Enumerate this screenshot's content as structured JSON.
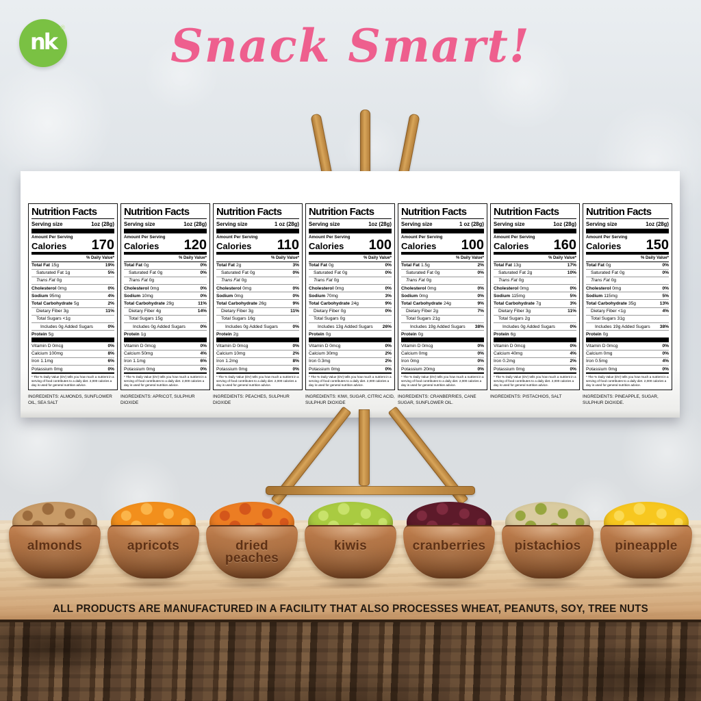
{
  "brand": {
    "logo_text": "nk",
    "registered_mark": "®",
    "logo_color": "#7ac143"
  },
  "header": {
    "title": "Snack Smart!",
    "title_color": "#ee5f8e"
  },
  "footer": {
    "allergen_notice": "ALL PRODUCTS ARE MANUFACTURED IN A FACILITY THAT ALSO PROCESSES WHEAT, PEANUTS, SOY, TREE NUTS"
  },
  "nutrition_shared": {
    "heading": "Nutrition Facts",
    "serving_size_label": "Serving size",
    "amount_per_serving_label": "Amount Per Serving",
    "calories_label": "Calories",
    "daily_value_header": "% Daily Value*",
    "footnote": "* The % Daily Value (DV) tells you how much a nutrient in a serving of food contributes to a daily diet. 2,000 calories a day is used for general nutrition advice."
  },
  "products": [
    {
      "bowl_label": "almonds",
      "serving_size": "1oz (28g)",
      "calories": "170",
      "nutrient_rows": [
        {
          "name": "Total Fat",
          "amount": "15g",
          "dv": "19%",
          "style": "bold"
        },
        {
          "name": "Saturated Fat",
          "amount": "1g",
          "dv": "5%",
          "style": "indent"
        },
        {
          "name": "Trans Fat",
          "amount": "0g",
          "dv": "",
          "style": "indent-italic"
        },
        {
          "name": "Cholesterol",
          "amount": "0mg",
          "dv": "0%",
          "style": "bold"
        },
        {
          "name": "Sodium",
          "amount": "95mg",
          "dv": "4%",
          "style": "bold"
        },
        {
          "name": "Total Carbohydrate",
          "amount": "5g",
          "dv": "2%",
          "style": "bold"
        },
        {
          "name": "Dietary Fiber",
          "amount": "3g",
          "dv": "11%",
          "style": "indent"
        },
        {
          "name": "Total Sugars",
          "amount": "<1g",
          "dv": "",
          "style": "indent"
        },
        {
          "name": "Includes 0g Added Sugars",
          "amount": "",
          "dv": "0%",
          "style": "indent2"
        },
        {
          "name": "Protein",
          "amount": "5g",
          "dv": "",
          "style": "bold"
        }
      ],
      "vitamin_rows": [
        {
          "name": "Vitamin D 0mcg",
          "dv": "0%"
        },
        {
          "name": "Calcium 100mg",
          "dv": "8%"
        },
        {
          "name": "Iron 1.1mg",
          "dv": "6%"
        },
        {
          "name": "Potassium 0mg",
          "dv": "0%"
        }
      ],
      "ingredients": "INGREDIENTS: ALMONDS, SUNFLOWER OIL, SEA SALT",
      "fruit_colors": [
        "#c89b67",
        "#9b6b3d"
      ]
    },
    {
      "bowl_label": "apricots",
      "serving_size": "1oz (28g)",
      "calories": "120",
      "nutrient_rows": [
        {
          "name": "Total Fat",
          "amount": "0g",
          "dv": "0%",
          "style": "bold"
        },
        {
          "name": "Saturated Fat",
          "amount": "0g",
          "dv": "0%",
          "style": "indent"
        },
        {
          "name": "Trans Fat",
          "amount": "0g",
          "dv": "",
          "style": "indent-italic"
        },
        {
          "name": "Cholesterol",
          "amount": "0mg",
          "dv": "0%",
          "style": "bold"
        },
        {
          "name": "Sodium",
          "amount": "10mg",
          "dv": "0%",
          "style": "bold"
        },
        {
          "name": "Total Carbohydrate",
          "amount": "29g",
          "dv": "11%",
          "style": "bold"
        },
        {
          "name": "Dietary Fiber",
          "amount": "4g",
          "dv": "14%",
          "style": "indent"
        },
        {
          "name": "Total Sugars",
          "amount": "15g",
          "dv": "",
          "style": "indent"
        },
        {
          "name": "Includes 0g Added Sugars",
          "amount": "",
          "dv": "0%",
          "style": "indent2"
        },
        {
          "name": "Protein",
          "amount": "1g",
          "dv": "",
          "style": "bold"
        }
      ],
      "vitamin_rows": [
        {
          "name": "Vitamin D 0mcg",
          "dv": "0%"
        },
        {
          "name": "Calcium 50mg",
          "dv": "4%"
        },
        {
          "name": "Iron 1.1mg",
          "dv": "6%"
        },
        {
          "name": "Potassium 0mg",
          "dv": "0%"
        }
      ],
      "ingredients": "INGREDIENTS: APRICOT, SULPHUR DIOXIDE",
      "fruit_colors": [
        "#f28f1c",
        "#fbb54a"
      ]
    },
    {
      "bowl_label": "dried\npeaches",
      "serving_size": "1 oz (28g)",
      "calories": "110",
      "nutrient_rows": [
        {
          "name": "Total Fat",
          "amount": "2g",
          "dv": "3%",
          "style": "bold"
        },
        {
          "name": "Saturated Fat",
          "amount": "0g",
          "dv": "0%",
          "style": "indent"
        },
        {
          "name": "Trans Fat",
          "amount": "0g",
          "dv": "",
          "style": "indent-italic"
        },
        {
          "name": "Cholesterol",
          "amount": "0mg",
          "dv": "0%",
          "style": "bold"
        },
        {
          "name": "Sodium",
          "amount": "0mg",
          "dv": "0%",
          "style": "bold"
        },
        {
          "name": "Total Carbohydrate",
          "amount": "26g",
          "dv": "9%",
          "style": "bold"
        },
        {
          "name": "Dietary Fiber",
          "amount": "3g",
          "dv": "11%",
          "style": "indent"
        },
        {
          "name": "Total Sugars",
          "amount": "16g",
          "dv": "",
          "style": "indent"
        },
        {
          "name": "Includes 0g Added Sugars",
          "amount": "",
          "dv": "0%",
          "style": "indent2"
        },
        {
          "name": "Protein",
          "amount": "2g",
          "dv": "",
          "style": "bold"
        }
      ],
      "vitamin_rows": [
        {
          "name": "Vitamin D 0mcg",
          "dv": "0%"
        },
        {
          "name": "Calcium 10mg",
          "dv": "2%"
        },
        {
          "name": "Iron 1.2mg",
          "dv": "8%"
        },
        {
          "name": "Potassium 0mg",
          "dv": "0%"
        }
      ],
      "ingredients": "INGREDIENTS: PEACHES, SULPHUR DIOXIDE",
      "fruit_colors": [
        "#ec7d23",
        "#d4561b"
      ]
    },
    {
      "bowl_label": "kiwis",
      "serving_size": "1oz (28g)",
      "calories": "100",
      "nutrient_rows": [
        {
          "name": "Total Fat",
          "amount": "0g",
          "dv": "0%",
          "style": "bold"
        },
        {
          "name": "Saturated Fat",
          "amount": "0g",
          "dv": "0%",
          "style": "indent"
        },
        {
          "name": "Trans Fat",
          "amount": "0g",
          "dv": "",
          "style": "indent-italic"
        },
        {
          "name": "Cholesterol",
          "amount": "0mg",
          "dv": "0%",
          "style": "bold"
        },
        {
          "name": "Sodium",
          "amount": "70mg",
          "dv": "3%",
          "style": "bold"
        },
        {
          "name": "Total Carbohydrate",
          "amount": "24g",
          "dv": "9%",
          "style": "bold"
        },
        {
          "name": "Dietary Fiber",
          "amount": "0g",
          "dv": "0%",
          "style": "indent"
        },
        {
          "name": "Total Sugars",
          "amount": "0g",
          "dv": "",
          "style": "indent"
        },
        {
          "name": "Includes 13g Added Sugars",
          "amount": "",
          "dv": "26%",
          "style": "indent2"
        },
        {
          "name": "Protein",
          "amount": "0g",
          "dv": "",
          "style": "bold"
        }
      ],
      "vitamin_rows": [
        {
          "name": "Vitamin D 0mcg",
          "dv": "0%"
        },
        {
          "name": "Calcium 30mg",
          "dv": "2%"
        },
        {
          "name": "Iron 0.3mg",
          "dv": "2%"
        },
        {
          "name": "Potassium 0mg",
          "dv": "0%"
        }
      ],
      "ingredients": "INGREDIENTS: KIWI, SUGAR, CITRIC ACID, SULPHUR DIOXIDE",
      "fruit_colors": [
        "#a9cb41",
        "#c8e26b"
      ]
    },
    {
      "bowl_label": "cranberries",
      "serving_size": "1 oz (28g)",
      "calories": "100",
      "nutrient_rows": [
        {
          "name": "Total Fat",
          "amount": "1.5g",
          "dv": "2%",
          "style": "bold"
        },
        {
          "name": "Saturated Fat",
          "amount": "0g",
          "dv": "0%",
          "style": "indent"
        },
        {
          "name": "Trans Fat",
          "amount": "0g",
          "dv": "",
          "style": "indent-italic"
        },
        {
          "name": "Cholesterol",
          "amount": "0mg",
          "dv": "0%",
          "style": "bold"
        },
        {
          "name": "Sodium",
          "amount": "0mg",
          "dv": "0%",
          "style": "bold"
        },
        {
          "name": "Total Carbohydrate",
          "amount": "24g",
          "dv": "9%",
          "style": "bold"
        },
        {
          "name": "Dietary Fiber",
          "amount": "2g",
          "dv": "7%",
          "style": "indent"
        },
        {
          "name": "Total Sugars",
          "amount": "21g",
          "dv": "",
          "style": "indent"
        },
        {
          "name": "Includes 19g Added Sugars",
          "amount": "",
          "dv": "38%",
          "style": "indent2"
        },
        {
          "name": "Protein",
          "amount": "0g",
          "dv": "",
          "style": "bold"
        }
      ],
      "vitamin_rows": [
        {
          "name": "Vitamin D 0mcg",
          "dv": "0%"
        },
        {
          "name": "Calcium 0mg",
          "dv": "0%"
        },
        {
          "name": "Iron 0mg",
          "dv": "0%"
        },
        {
          "name": "Potassium 20mg",
          "dv": "0%"
        }
      ],
      "ingredients": "INGREDIENTS: CRANBERRIES, CANE SUGAR, SUNFLOWER OIL.",
      "fruit_colors": [
        "#5d1a2a",
        "#7e2a3e"
      ]
    },
    {
      "bowl_label": "pistachios",
      "serving_size": "1oz (28g)",
      "calories": "160",
      "nutrient_rows": [
        {
          "name": "Total Fat",
          "amount": "13g",
          "dv": "17%",
          "style": "bold"
        },
        {
          "name": "Saturated Fat",
          "amount": "2g",
          "dv": "10%",
          "style": "indent"
        },
        {
          "name": "Trans Fat",
          "amount": "0g",
          "dv": "",
          "style": "indent-italic"
        },
        {
          "name": "Cholesterol",
          "amount": "0mg",
          "dv": "0%",
          "style": "bold"
        },
        {
          "name": "Sodium",
          "amount": "115mg",
          "dv": "5%",
          "style": "bold"
        },
        {
          "name": "Total Carbohydrate",
          "amount": "7g",
          "dv": "3%",
          "style": "bold"
        },
        {
          "name": "Dietary Fiber",
          "amount": "3g",
          "dv": "11%",
          "style": "indent"
        },
        {
          "name": "Total Sugars",
          "amount": "2g",
          "dv": "",
          "style": "indent"
        },
        {
          "name": "Includes 0g Added Sugars",
          "amount": "",
          "dv": "0%",
          "style": "indent2"
        },
        {
          "name": "Protein",
          "amount": "6g",
          "dv": "",
          "style": "bold"
        }
      ],
      "vitamin_rows": [
        {
          "name": "Vitamin D 0mcg",
          "dv": "0%"
        },
        {
          "name": "Calcium 40mg",
          "dv": "4%"
        },
        {
          "name": "Iron 0.2mg",
          "dv": "2%"
        },
        {
          "name": "Potassium 0mg",
          "dv": "0%"
        }
      ],
      "ingredients": "INGREDIENTS: PISTACHIOS, SALT",
      "fruit_colors": [
        "#d9cba0",
        "#97a63f"
      ]
    },
    {
      "bowl_label": "pineapple",
      "serving_size": "1oz (28g)",
      "calories": "150",
      "nutrient_rows": [
        {
          "name": "Total Fat",
          "amount": "0g",
          "dv": "0%",
          "style": "bold"
        },
        {
          "name": "Saturated Fat",
          "amount": "0g",
          "dv": "0%",
          "style": "indent"
        },
        {
          "name": "Trans Fat",
          "amount": "0g",
          "dv": "",
          "style": "indent-italic"
        },
        {
          "name": "Cholesterol",
          "amount": "0mg",
          "dv": "0%",
          "style": "bold"
        },
        {
          "name": "Sodium",
          "amount": "115mg",
          "dv": "5%",
          "style": "bold"
        },
        {
          "name": "Total Carbohydrate",
          "amount": "35g",
          "dv": "13%",
          "style": "bold"
        },
        {
          "name": "Dietary Fiber",
          "amount": "<1g",
          "dv": "4%",
          "style": "indent"
        },
        {
          "name": "Total Sugars",
          "amount": "31g",
          "dv": "",
          "style": "indent"
        },
        {
          "name": "Includes 19g Added Sugars",
          "amount": "",
          "dv": "38%",
          "style": "indent2"
        },
        {
          "name": "Protein",
          "amount": "0g",
          "dv": "",
          "style": "bold"
        }
      ],
      "vitamin_rows": [
        {
          "name": "Vitamin D 0mcg",
          "dv": "0%"
        },
        {
          "name": "Calcium 0mg",
          "dv": "0%"
        },
        {
          "name": "Iron 0.5mg",
          "dv": "4%"
        },
        {
          "name": "Potassium 0mg",
          "dv": "0%"
        }
      ],
      "ingredients": "INGREDIENTS: PINEAPPLE, SUGAR, SULPHUR DIOXIDE.",
      "fruit_colors": [
        "#f7c71f",
        "#fbdb55"
      ]
    }
  ]
}
